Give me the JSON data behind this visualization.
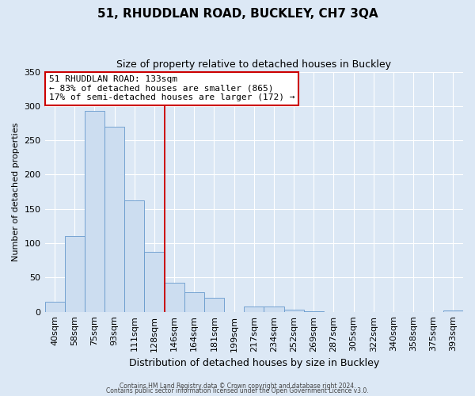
{
  "title": "51, RHUDDLAN ROAD, BUCKLEY, CH7 3QA",
  "subtitle": "Size of property relative to detached houses in Buckley",
  "xlabel": "Distribution of detached houses by size in Buckley",
  "ylabel": "Number of detached properties",
  "bar_labels": [
    "40sqm",
    "58sqm",
    "75sqm",
    "93sqm",
    "111sqm",
    "128sqm",
    "146sqm",
    "164sqm",
    "181sqm",
    "199sqm",
    "217sqm",
    "234sqm",
    "252sqm",
    "269sqm",
    "287sqm",
    "305sqm",
    "322sqm",
    "340sqm",
    "358sqm",
    "375sqm",
    "393sqm"
  ],
  "bar_values": [
    15,
    110,
    293,
    270,
    163,
    87,
    42,
    28,
    20,
    0,
    8,
    8,
    3,
    1,
    0,
    0,
    0,
    0,
    0,
    0,
    2
  ],
  "bar_color": "#ccddf0",
  "bar_edge_color": "#6699cc",
  "vline_x": 5.5,
  "vline_color": "#cc0000",
  "ylim": [
    0,
    350
  ],
  "yticks": [
    0,
    50,
    100,
    150,
    200,
    250,
    300,
    350
  ],
  "annotation_title": "51 RHUDDLAN ROAD: 133sqm",
  "annotation_line1": "← 83% of detached houses are smaller (865)",
  "annotation_line2": "17% of semi-detached houses are larger (172) →",
  "annotation_box_color": "#ffffff",
  "annotation_box_edge": "#cc0000",
  "footer1": "Contains HM Land Registry data © Crown copyright and database right 2024.",
  "footer2": "Contains public sector information licensed under the Open Government Licence v3.0.",
  "bg_color": "#dce8f5",
  "plot_bg_color": "#dce8f5"
}
